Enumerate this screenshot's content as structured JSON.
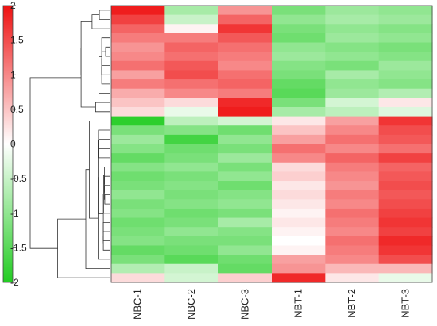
{
  "chart_data": {
    "type": "heatmap",
    "title": "",
    "columns": [
      "NBC-1",
      "NBC-2",
      "NBC-3",
      "NBT-1",
      "NBT-2",
      "NBT-3"
    ],
    "color_scale": {
      "min": -2,
      "max": 2,
      "ticks": [
        2,
        1.5,
        1,
        0.5,
        0,
        -0.5,
        -1,
        -1.5,
        -2
      ],
      "tick_labels": [
        "2",
        "1.5",
        "1",
        "0.5",
        "0",
        "-0.5",
        "-1",
        "-1.5",
        "-2"
      ],
      "low_color": "#22cc22",
      "mid_color": "#ffffff",
      "high_color": "#ee1111"
    },
    "row_dendrogram": true,
    "rows": [
      [
        1.9,
        -0.8,
        0.9,
        -1.2,
        -0.9,
        -1.0
      ],
      [
        1.6,
        -0.5,
        1.3,
        -1.0,
        -0.8,
        -0.9
      ],
      [
        1.3,
        0.1,
        1.7,
        -1.2,
        -1.0,
        -1.1
      ],
      [
        1.1,
        1.1,
        1.4,
        -1.3,
        -0.9,
        -1.0
      ],
      [
        0.9,
        1.3,
        1.2,
        -1.0,
        -1.1,
        -1.2
      ],
      [
        1.0,
        1.2,
        1.1,
        -0.9,
        -1.0,
        -1.1
      ],
      [
        1.2,
        1.4,
        1.0,
        -1.1,
        -1.2,
        -0.9
      ],
      [
        0.8,
        1.5,
        1.2,
        -1.2,
        -0.8,
        -1.0
      ],
      [
        1.1,
        1.2,
        1.3,
        -1.4,
        -1.0,
        -1.1
      ],
      [
        0.7,
        1.0,
        1.1,
        -1.5,
        -0.9,
        -0.7
      ],
      [
        0.5,
        0.3,
        1.8,
        -1.2,
        -0.4,
        0.2
      ],
      [
        0.3,
        -0.2,
        1.9,
        -0.8,
        -0.6,
        -0.3
      ],
      [
        -1.9,
        -0.6,
        -0.4,
        0.2,
        0.8,
        1.7
      ],
      [
        -1.2,
        -1.1,
        -1.3,
        0.5,
        1.0,
        1.5
      ],
      [
        -0.9,
        -1.7,
        -1.0,
        0.8,
        1.2,
        1.4
      ],
      [
        -1.1,
        -1.3,
        -1.2,
        1.2,
        1.0,
        1.2
      ],
      [
        -1.4,
        -1.2,
        -0.9,
        1.0,
        1.3,
        1.6
      ],
      [
        -1.1,
        -1.0,
        -1.2,
        0.3,
        1.1,
        1.3
      ],
      [
        -1.3,
        -1.2,
        -1.0,
        0.4,
        1.0,
        1.4
      ],
      [
        -1.2,
        -1.1,
        -1.3,
        0.2,
        0.9,
        1.5
      ],
      [
        -1.0,
        -1.2,
        -1.1,
        0.3,
        1.1,
        1.4
      ],
      [
        -1.2,
        -1.1,
        -1.0,
        0.2,
        1.0,
        1.5
      ],
      [
        -1.1,
        -1.3,
        -1.2,
        0.1,
        1.2,
        1.6
      ],
      [
        -1.3,
        -1.2,
        -0.8,
        0.2,
        1.1,
        1.7
      ],
      [
        -1.2,
        -1.0,
        -1.1,
        0.1,
        1.0,
        1.6
      ],
      [
        -1.1,
        -1.2,
        -1.2,
        0.0,
        1.2,
        1.8
      ],
      [
        -1.4,
        -1.3,
        -1.0,
        0.1,
        1.1,
        1.7
      ],
      [
        -1.2,
        -1.5,
        -1.3,
        0.8,
        1.0,
        1.5
      ],
      [
        -0.7,
        -0.5,
        -1.4,
        0.9,
        0.6,
        0.6
      ],
      [
        0.3,
        -0.4,
        0.4,
        1.8,
        0.2,
        -0.2
      ]
    ]
  }
}
